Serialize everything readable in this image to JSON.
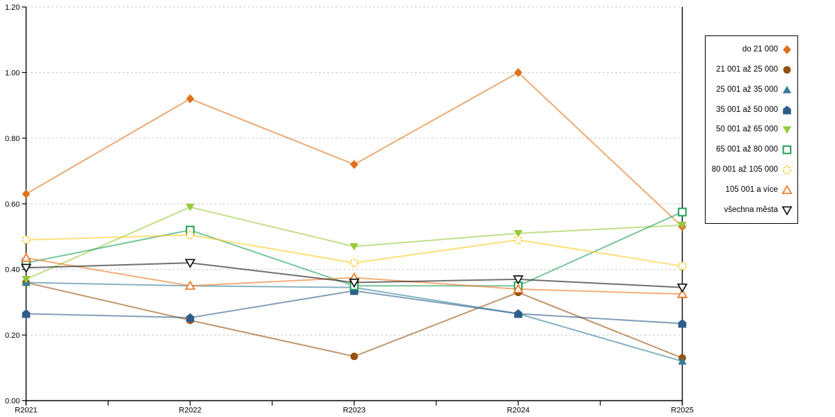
{
  "chart_data": {
    "type": "line",
    "title": "",
    "xlabel": "",
    "ylabel": "",
    "categories": [
      "R2021",
      "R2022",
      "R2023",
      "R2024",
      "R2025"
    ],
    "ylim": [
      0,
      1.2
    ],
    "y_tick_step": 0.2,
    "y_tick_labels": [
      "0.00",
      "0.20",
      "0.40",
      "0.60",
      "0.80",
      "1.00",
      "1.20"
    ],
    "grid": "horizontal-dashed",
    "legend_position": "right-outside",
    "series": [
      {
        "name": "do 21 000",
        "color": "#E0711C",
        "marker": "diamond",
        "values": [
          0.63,
          0.92,
          0.72,
          1.0,
          0.53
        ]
      },
      {
        "name": "21 001 až 25 000",
        "color": "#94510F",
        "marker": "circle",
        "values": [
          0.36,
          0.245,
          0.135,
          0.33,
          0.13
        ]
      },
      {
        "name": "25 001 až 35 000",
        "color": "#337E96",
        "marker": "triangle-up",
        "values": [
          0.36,
          0.35,
          0.345,
          0.265,
          0.12
        ]
      },
      {
        "name": "35 001 až 50 000",
        "color": "#2E5D8A",
        "marker": "pentagon",
        "values": [
          0.265,
          0.253,
          0.335,
          0.265,
          0.235
        ]
      },
      {
        "name": "50 001 až 65 000",
        "color": "#97C93D",
        "marker": "triangle-down",
        "values": [
          0.37,
          0.59,
          0.47,
          0.51,
          0.535
        ]
      },
      {
        "name": "65 001 až 80 000",
        "color": "#1FA05A",
        "marker": "square-open",
        "values": [
          0.42,
          0.52,
          0.35,
          0.35,
          0.575
        ]
      },
      {
        "name": "80 001 až 105 000",
        "color": "#FFC91E",
        "marker": "circle-open-dashed",
        "values": [
          0.49,
          0.505,
          0.42,
          0.49,
          0.41
        ]
      },
      {
        "name": "105 001 a více",
        "color": "#F0751F",
        "marker": "triangle-up-open",
        "values": [
          0.435,
          0.35,
          0.375,
          0.34,
          0.325
        ]
      },
      {
        "name": "všechna města",
        "color": "#111111",
        "marker": "triangle-down-open",
        "values": [
          0.405,
          0.42,
          0.36,
          0.37,
          0.345
        ]
      }
    ],
    "style": {
      "grid_color": "#b3b3b3",
      "axis_color": "#000000",
      "line_opacity": 0.6
    }
  }
}
